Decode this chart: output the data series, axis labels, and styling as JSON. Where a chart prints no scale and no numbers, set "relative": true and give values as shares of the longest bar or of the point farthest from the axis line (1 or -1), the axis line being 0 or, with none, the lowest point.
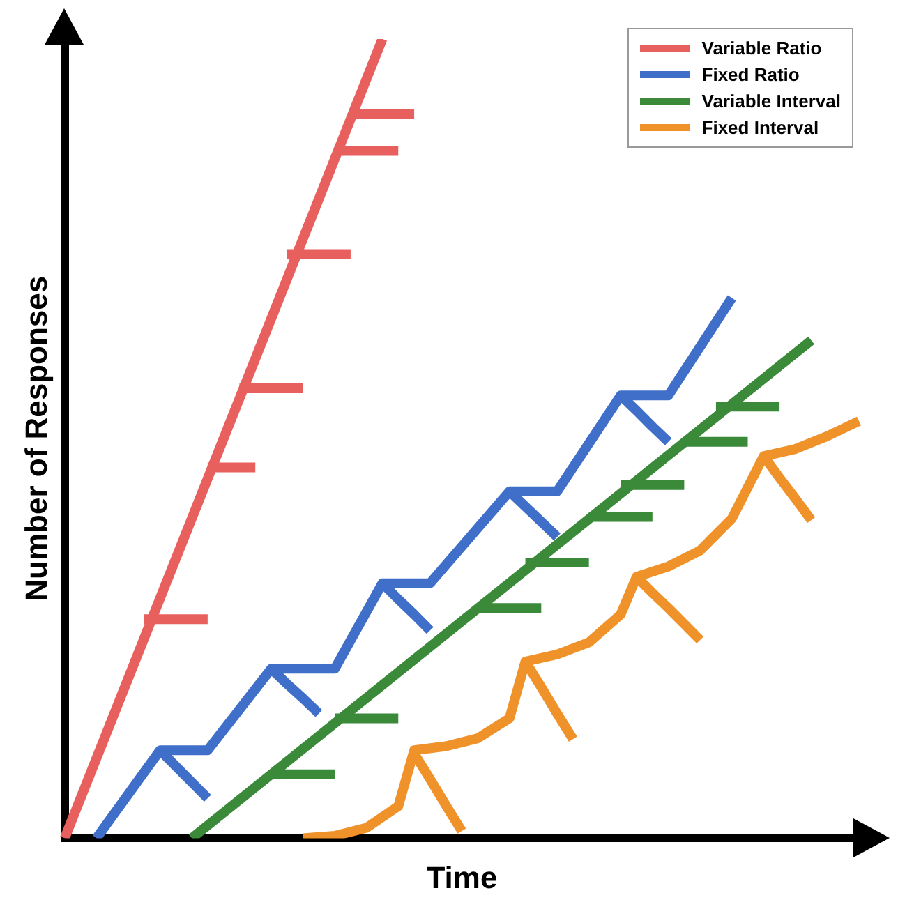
{
  "chart_data": {
    "type": "line",
    "relative": true,
    "xlabel": "Time",
    "ylabel": "Number of Responses",
    "grid": false,
    "legend": "top right",
    "marker": "none",
    "line_style": "solid",
    "categories": [
      null,
      null,
      null,
      null,
      null,
      null,
      null,
      null,
      null,
      null,
      null,
      null,
      null,
      null,
      null,
      null,
      null,
      null,
      null,
      null,
      null,
      null,
      null,
      null,
      null,
      null,
      null,
      null,
      null,
      null,
      null,
      null,
      null,
      null,
      null,
      null,
      null,
      null,
      null,
      null,
      null,
      null,
      null,
      null,
      null,
      null,
      null,
      null,
      null,
      null,
      null
    ],
    "series": [
      {
        "name": "Variable Ratio",
        "color": "#e8605e",
        "values": [
          0,
          null,
          null,
          null,
          null,
          null,
          null,
          null,
          null,
          null,
          null,
          null,
          null,
          null,
          null,
          null,
          null,
          null,
          null,
          null,
          1,
          null,
          null,
          null,
          null,
          null,
          null,
          null,
          null,
          null,
          null,
          null,
          null,
          null,
          null,
          null,
          null,
          null,
          null,
          null,
          null,
          null,
          null,
          null,
          null,
          null,
          null,
          null,
          null,
          null,
          null
        ]
      },
      {
        "name": "Fixed Ratio",
        "color": "#3f6fc8",
        "values": [
          null,
          null,
          0,
          null,
          null,
          null,
          0.11,
          null,
          null,
          0.11,
          null,
          null,
          null,
          0.212,
          null,
          null,
          null,
          0.212,
          null,
          null,
          0.319,
          null,
          null,
          0.319,
          null,
          null,
          null,
          null,
          0.434,
          null,
          null,
          0.434,
          null,
          null,
          null,
          0.554,
          null,
          null,
          0.554,
          null,
          null,
          null,
          0.676,
          null,
          null,
          null,
          null,
          null,
          null,
          null,
          null
        ]
      },
      {
        "name": "Variable Interval",
        "color": "#3a8a3a",
        "values": [
          null,
          null,
          null,
          null,
          null,
          null,
          null,
          null,
          0,
          null,
          null,
          null,
          null,
          null,
          null,
          null,
          null,
          null,
          null,
          null,
          null,
          null,
          null,
          null,
          null,
          null,
          null,
          null,
          null,
          null,
          null,
          null,
          null,
          null,
          null,
          null,
          null,
          null,
          null,
          null,
          null,
          null,
          null,
          null,
          null,
          null,
          null,
          0.623,
          null,
          null,
          null
        ]
      },
      {
        "name": "Fixed Interval",
        "color": "#f0922a",
        "values": [
          null,
          null,
          null,
          null,
          null,
          null,
          null,
          null,
          null,
          null,
          null,
          null,
          null,
          null,
          null,
          0,
          null,
          0.003,
          null,
          0.013,
          null,
          0.04,
          0.11,
          null,
          0.115,
          null,
          0.125,
          null,
          0.15,
          0.221,
          null,
          0.23,
          null,
          0.245,
          null,
          0.28,
          0.327,
          null,
          0.34,
          null,
          0.36,
          null,
          0.4,
          null,
          0.478,
          null,
          0.487,
          null,
          0.503,
          null,
          0.522
        ]
      },
      {
        "color": "#e8605e",
        "values": [
          null,
          null,
          null,
          null,
          null,
          0.274,
          0.274,
          0.274,
          0.274,
          0.274,
          null,
          0.563,
          0.563,
          0.563,
          0.563,
          0.563,
          null,
          0.86,
          0.86,
          0.86,
          0.86,
          0.86,
          null,
          null,
          null,
          null,
          null,
          null,
          null,
          null,
          null,
          null,
          null,
          null,
          null,
          null,
          null,
          null,
          null,
          null,
          null,
          null,
          null,
          null,
          null,
          null,
          null,
          null,
          null,
          null,
          null
        ]
      },
      {
        "color": "#e8605e",
        "values": [
          null,
          null,
          null,
          null,
          null,
          null,
          null,
          null,
          null,
          0.464,
          0.464,
          0.464,
          0.464,
          null,
          0.731,
          0.731,
          0.731,
          0.731,
          0.731,
          null,
          null,
          null,
          null,
          null,
          null,
          null,
          null,
          null,
          null,
          null,
          null,
          null,
          null,
          null,
          null,
          null,
          null,
          null,
          null,
          null,
          null,
          null,
          null,
          null,
          null,
          null,
          null,
          null,
          null,
          null,
          null
        ]
      },
      {
        "color": "#e8605e",
        "values": [
          null,
          null,
          null,
          null,
          null,
          null,
          null,
          null,
          null,
          null,
          null,
          null,
          null,
          null,
          null,
          null,
          null,
          null,
          0.906,
          0.906,
          0.906,
          0.906,
          0.906,
          null,
          null,
          null,
          null,
          null,
          null,
          null,
          null,
          null,
          null,
          null,
          null,
          null,
          null,
          null,
          null,
          null,
          null,
          null,
          null,
          null,
          null,
          null,
          null,
          null,
          null,
          null,
          null
        ]
      },
      {
        "color": "#3f6fc8",
        "values": [
          null,
          null,
          null,
          null,
          null,
          null,
          0.11,
          0.09,
          0.07,
          0.05,
          null,
          null,
          null,
          0.212,
          0.193,
          0.175,
          0.156,
          null,
          null,
          null,
          0.319,
          0.299,
          0.28,
          0.26,
          null,
          null,
          null,
          null,
          0.434,
          0.415,
          0.396,
          0.377,
          null,
          null,
          null,
          0.554,
          0.535,
          0.515,
          0.496,
          null,
          null,
          null,
          null,
          null,
          null,
          null,
          null,
          null,
          null,
          null,
          null
        ]
      },
      {
        "color": "#3a8a3a",
        "values": [
          null,
          null,
          null,
          null,
          null,
          null,
          null,
          null,
          null,
          null,
          null,
          null,
          null,
          0.08,
          0.08,
          0.08,
          0.08,
          0.08,
          null,
          null,
          null,
          null,
          null,
          null,
          null,
          null,
          0.288,
          0.288,
          0.288,
          0.288,
          0.288,
          null,
          null,
          0.402,
          0.402,
          0.402,
          0.402,
          0.402,
          null,
          0.496,
          0.496,
          0.496,
          0.496,
          0.496,
          null,
          null,
          null,
          null,
          null,
          null,
          null
        ]
      },
      {
        "color": "#3a8a3a",
        "values": [
          null,
          null,
          null,
          null,
          null,
          null,
          null,
          null,
          null,
          null,
          null,
          null,
          null,
          null,
          null,
          null,
          null,
          0.15,
          0.15,
          0.15,
          0.15,
          0.15,
          null,
          null,
          null,
          null,
          null,
          null,
          null,
          0.345,
          0.345,
          0.345,
          0.345,
          0.345,
          null,
          0.442,
          0.442,
          0.442,
          0.442,
          0.442,
          null,
          0.54,
          0.54,
          0.54,
          0.54,
          0.54,
          null,
          null,
          null,
          null,
          null
        ]
      },
      {
        "color": "#f0922a",
        "values": [
          null,
          null,
          null,
          null,
          null,
          null,
          null,
          null,
          null,
          null,
          null,
          null,
          null,
          null,
          null,
          null,
          null,
          null,
          null,
          null,
          null,
          null,
          0.106,
          0.074,
          0.041,
          0.009,
          null,
          null,
          null,
          0.221,
          0.189,
          0.156,
          0.124,
          null,
          null,
          null,
          0.327,
          0.307,
          0.288,
          0.268,
          0.248,
          null,
          null,
          null,
          0.478,
          0.451,
          0.425,
          0.398,
          null,
          null,
          null
        ]
      }
    ]
  }
}
